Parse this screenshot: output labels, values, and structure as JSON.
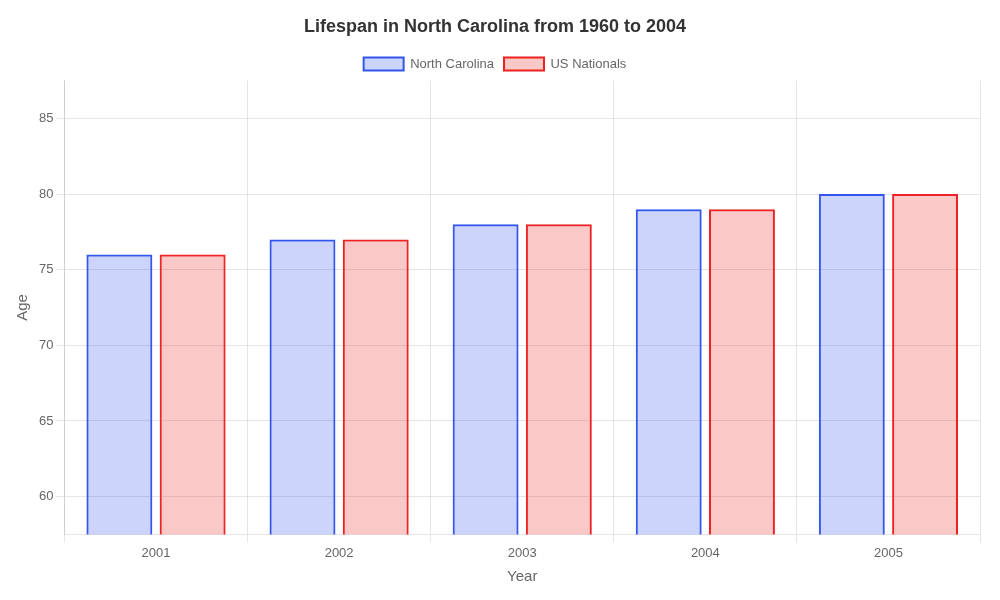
{
  "chart_data": {
    "type": "bar",
    "title": "Lifespan in North Carolina from 1960 to 2004",
    "xlabel": "Year",
    "ylabel": "Age",
    "categories": [
      "2001",
      "2002",
      "2003",
      "2004",
      "2005"
    ],
    "series": [
      {
        "name": "North Carolina",
        "color": "#3355ee",
        "values": [
          76,
          77,
          78,
          79,
          80
        ]
      },
      {
        "name": "US Nationals",
        "color": "#ee2222",
        "values": [
          76,
          77,
          78,
          79,
          80
        ]
      }
    ],
    "ylim": [
      57.5,
      87.5
    ],
    "yticks": [
      60,
      65,
      70,
      75,
      80,
      85
    ],
    "grid": true,
    "legend": "top"
  }
}
